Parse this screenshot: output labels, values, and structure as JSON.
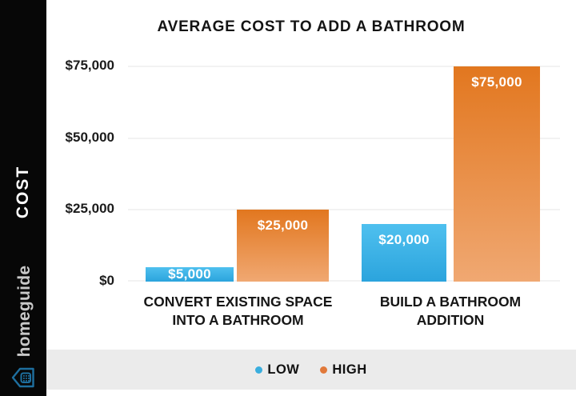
{
  "sidebar": {
    "axis_label": "COST",
    "brand": "homeguide",
    "icon_color": "#1e6f9f"
  },
  "chart_data": {
    "type": "bar",
    "title": "AVERAGE COST TO ADD A BATHROOM",
    "xlabel": "",
    "ylabel": "COST",
    "ylim": [
      0,
      75000
    ],
    "grid": true,
    "legend_position": "bottom",
    "categories": [
      {
        "line1": "CONVERT EXISTING SPACE",
        "line2": "INTO A BATHROOM"
      },
      {
        "line1": "BUILD A BATHROOM",
        "line2": "ADDITION"
      }
    ],
    "series": [
      {
        "name": "LOW",
        "values": [
          5000,
          20000
        ],
        "labels": [
          "$5,000",
          "$20,000"
        ],
        "color_top": "#4fc0ef",
        "color_bottom": "#2ba4dd"
      },
      {
        "name": "HIGH",
        "values": [
          25000,
          75000
        ],
        "labels": [
          "$25,000",
          "$75,000"
        ],
        "color_top": "#e2771f",
        "color_bottom": "#f0a872"
      }
    ],
    "y_axis": {
      "max": 75000,
      "ticks": [
        "$75,000",
        "$50,000",
        "$25,000",
        "$0"
      ]
    }
  },
  "legend": {
    "items": [
      {
        "label": "LOW",
        "color": "#3aaede"
      },
      {
        "label": "HIGH",
        "color": "#e1793a"
      }
    ]
  }
}
